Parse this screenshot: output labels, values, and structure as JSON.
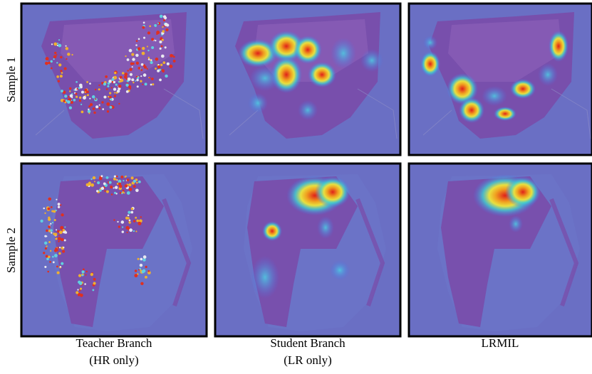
{
  "rows": [
    {
      "label": "Sample 1"
    },
    {
      "label": "Sample 2"
    }
  ],
  "columns": [
    {
      "title": "Teacher Branch",
      "note": "(HR only)"
    },
    {
      "title": "Student Branch",
      "note": "(LR only)"
    },
    {
      "title": "LRMIL"
    }
  ]
}
